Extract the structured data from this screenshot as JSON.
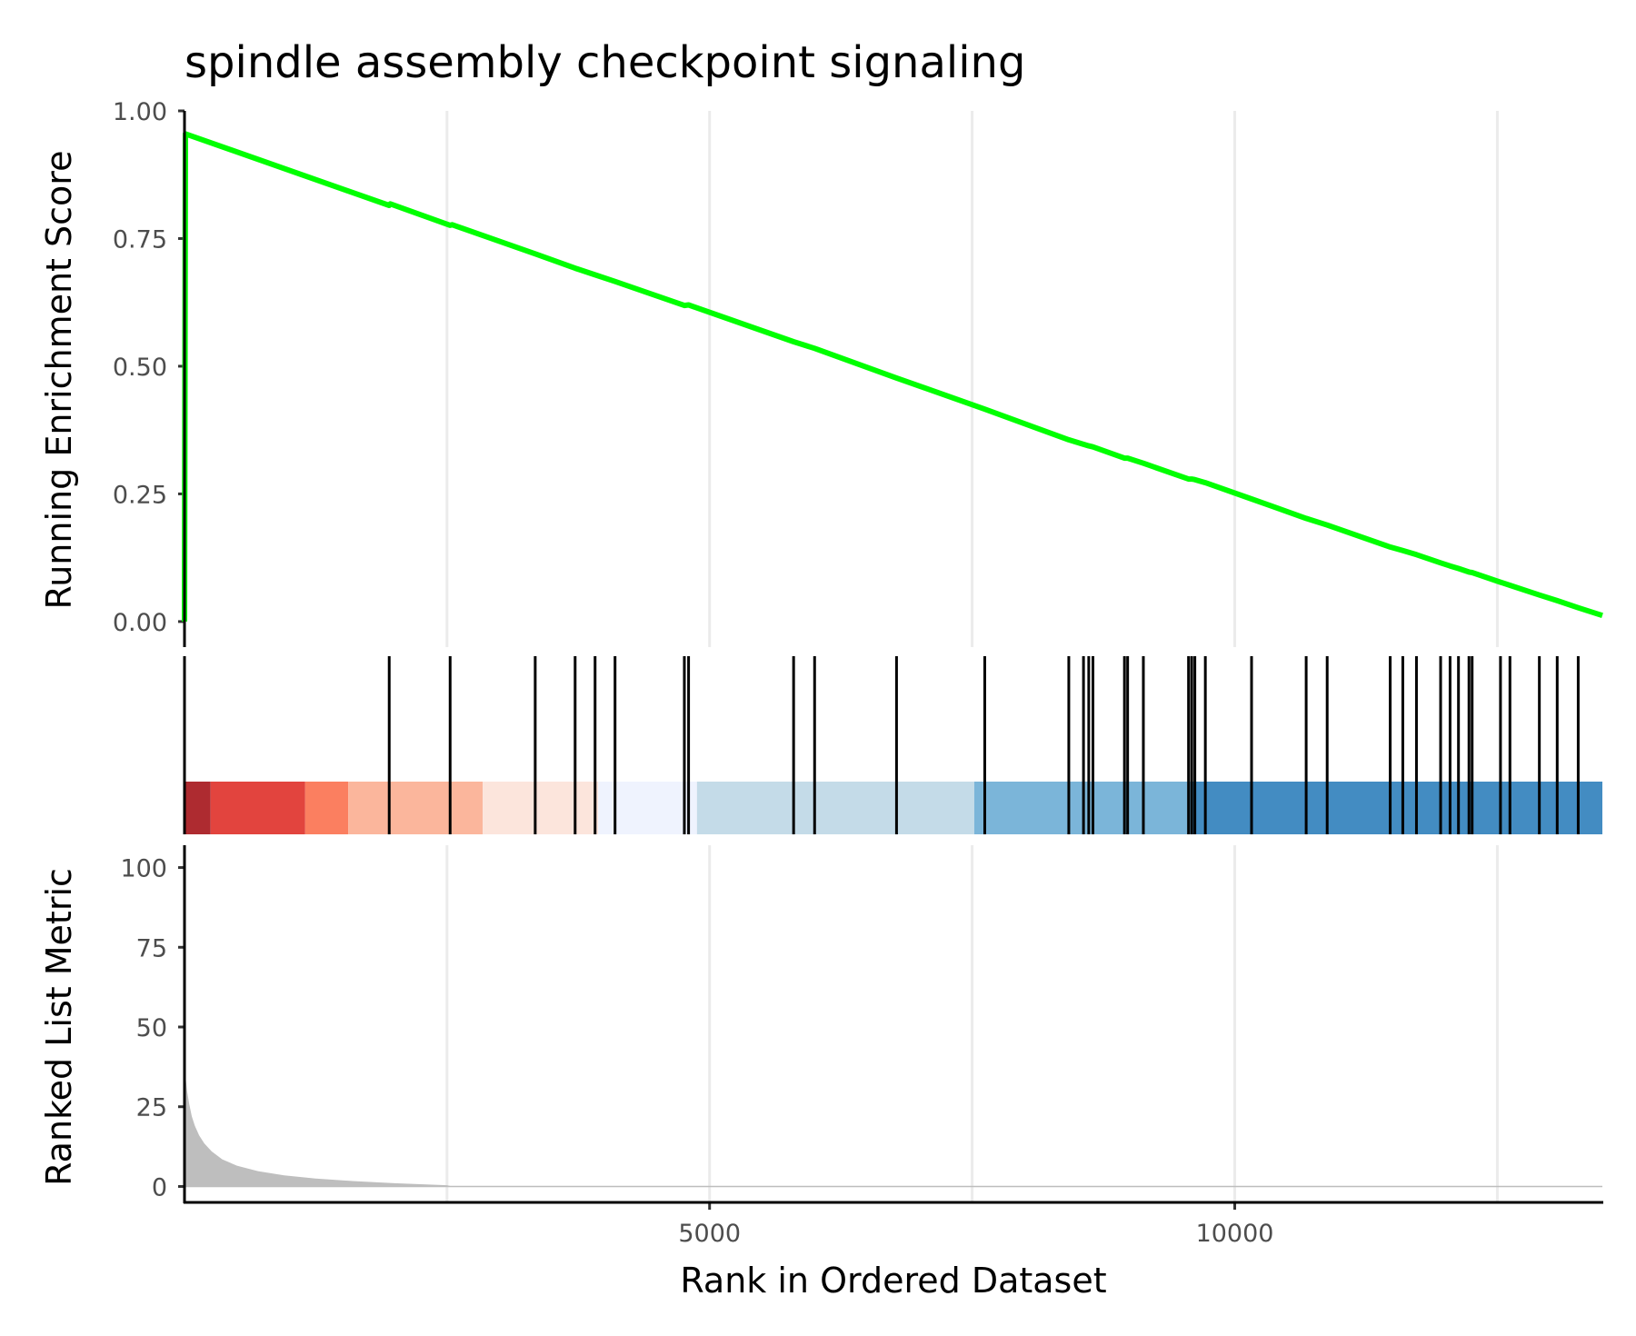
{
  "chart_data": {
    "type": "line",
    "title": "spindle assembly checkpoint signaling",
    "xlabel": "Rank in Ordered Dataset",
    "xlim": [
      1,
      13500
    ],
    "x_ticks": [
      5000,
      10000
    ],
    "x_tick_labels": [
      "5000",
      "10000"
    ],
    "x_gridlines": [
      2500,
      5000,
      7500,
      10000,
      12500
    ],
    "running_score": {
      "ylabel": "Running Enrichment Score",
      "ylim": [
        -0.05,
        1.0
      ],
      "y_ticks": [
        0.0,
        0.25,
        0.5,
        0.75,
        1.0
      ],
      "y_tick_labels": [
        "0.00",
        "0.25",
        "0.50",
        "0.75",
        "1.00"
      ],
      "color": "#00FF00",
      "x": [
        1,
        10,
        1950,
        1960,
        2530,
        2550,
        3340,
        3720,
        3910,
        4100,
        4760,
        4800,
        5800,
        6000,
        6780,
        7620,
        8420,
        8560,
        8610,
        8650,
        8950,
        8980,
        9130,
        9560,
        9590,
        9620,
        9720,
        10160,
        10680,
        10880,
        11480,
        11600,
        11730,
        11960,
        12050,
        12130,
        12230,
        12260,
        12530,
        12620,
        12900,
        13070,
        13270,
        13500
      ],
      "y": [
        0.0,
        0.955,
        0.815,
        0.818,
        0.776,
        0.777,
        0.72,
        0.692,
        0.679,
        0.666,
        0.619,
        0.62,
        0.548,
        0.535,
        0.477,
        0.416,
        0.356,
        0.347,
        0.344,
        0.342,
        0.32,
        0.32,
        0.31,
        0.279,
        0.279,
        0.278,
        0.272,
        0.24,
        0.202,
        0.189,
        0.146,
        0.139,
        0.131,
        0.115,
        0.109,
        0.104,
        0.097,
        0.096,
        0.077,
        0.071,
        0.052,
        0.041,
        0.027,
        0.012
      ]
    },
    "gene_hits": [
      1950,
      2530,
      3340,
      3720,
      3910,
      4100,
      4760,
      4800,
      5800,
      6000,
      6780,
      7620,
      8420,
      8560,
      8610,
      8650,
      8950,
      8980,
      9130,
      9560,
      9590,
      9620,
      9720,
      10160,
      10680,
      10880,
      11480,
      11600,
      11730,
      11960,
      12050,
      12130,
      12230,
      12260,
      12530,
      12620,
      12900,
      13070,
      13270
    ],
    "color_bands": [
      {
        "from": 1,
        "to": 250,
        "color": "#AE2B30"
      },
      {
        "from": 250,
        "to": 1150,
        "color": "#E2443E"
      },
      {
        "from": 1150,
        "to": 1560,
        "color": "#FB7F60"
      },
      {
        "from": 1560,
        "to": 2840,
        "color": "#FBB69C"
      },
      {
        "from": 2840,
        "to": 3940,
        "color": "#FCE5DC"
      },
      {
        "from": 3940,
        "to": 4880,
        "color": "#EFF3FE"
      },
      {
        "from": 4880,
        "to": 7520,
        "color": "#C4DBE8"
      },
      {
        "from": 7520,
        "to": 9600,
        "color": "#7BB5D9"
      },
      {
        "from": 9600,
        "to": 13500,
        "color": "#438CC2"
      }
    ],
    "ranked_metric": {
      "ylabel": "Ranked List Metric",
      "ylim": [
        -5,
        107
      ],
      "y_ticks": [
        0,
        25,
        50,
        75,
        100
      ],
      "y_tick_labels": [
        "0",
        "25",
        "50",
        "75",
        "100"
      ],
      "fill_color": "#BEBEBE",
      "x": [
        1,
        12,
        25,
        45,
        70,
        100,
        140,
        190,
        260,
        360,
        500,
        700,
        950,
        1250,
        1600,
        2000,
        2500,
        2550,
        13500
      ],
      "y": [
        41,
        34,
        30,
        26,
        22,
        19,
        16,
        13.5,
        11,
        8.5,
        6.5,
        4.8,
        3.5,
        2.5,
        1.7,
        1.0,
        0.4,
        0,
        0
      ]
    }
  }
}
